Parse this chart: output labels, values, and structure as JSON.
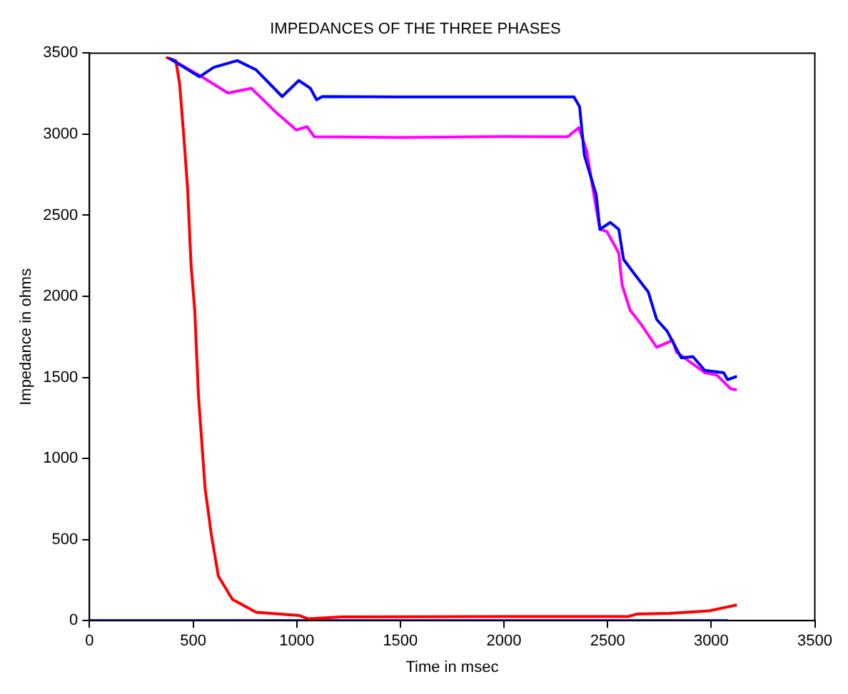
{
  "chart_data": {
    "type": "line",
    "title": "IMPEDANCES OF THE THREE PHASES",
    "xlabel": "Time in msec",
    "ylabel": "Impedance in ohms",
    "xlim": [
      0,
      3500
    ],
    "xticks": [
      0,
      500,
      1000,
      1500,
      2000,
      2500,
      3000,
      3500
    ],
    "ylim": [
      0,
      3500
    ],
    "yticks": [
      0,
      500,
      1000,
      1500,
      2000,
      2500,
      3000,
      3500
    ],
    "grid": false,
    "legend": false,
    "marker": "none",
    "line_style": "solid",
    "series": [
      {
        "color": "#0000ff",
        "x": [
          383,
          531,
          599,
          713,
          804,
          930,
          1010,
          1066,
          1096,
          1123,
          1500,
          2000,
          2338,
          2365,
          2388,
          2445,
          2463,
          2513,
          2554,
          2577,
          2627,
          2696,
          2737,
          2787,
          2856,
          2912,
          2969,
          3060,
          3079,
          3124
        ],
        "values": [
          3470,
          3354,
          3412,
          3454,
          3397,
          3232,
          3331,
          3283,
          3212,
          3232,
          3230,
          3230,
          3230,
          3169,
          2870,
          2627,
          2413,
          2456,
          2413,
          2228,
          2142,
          2028,
          1857,
          1786,
          1620,
          1628,
          1543,
          1529,
          1486,
          1506
        ]
      },
      {
        "color": "#ff00ff",
        "x": [
          383,
          463,
          542,
          668,
          781,
          896,
          998,
          1050,
          1085,
          1500,
          2000,
          2308,
          2361,
          2399,
          2434,
          2463,
          2497,
          2554,
          2570,
          2609,
          2661,
          2737,
          2814,
          2832,
          2969,
          3026,
          3095,
          3124
        ],
        "values": [
          3470,
          3412,
          3354,
          3254,
          3283,
          3140,
          3026,
          3046,
          2984,
          2980,
          2985,
          2984,
          3040,
          2898,
          2627,
          2413,
          2399,
          2268,
          2071,
          1914,
          1829,
          1686,
          1729,
          1657,
          1529,
          1515,
          1429,
          1423
        ]
      },
      {
        "color": "#ff0000",
        "x": [
          369,
          417,
          435,
          458,
          474,
          490,
          508,
          526,
          542,
          558,
          588,
          622,
          690,
          804,
          1010,
          1055,
          1215,
          2000,
          2600,
          2640,
          2800,
          2992,
          3124
        ],
        "values": [
          3474,
          3454,
          3311,
          2941,
          2655,
          2199,
          1914,
          1386,
          1101,
          816,
          531,
          274,
          131,
          51,
          32,
          11,
          23,
          25,
          25,
          40,
          45,
          60,
          97
        ]
      },
      {
        "color": "#0000cc",
        "x": [
          0,
          3080
        ],
        "values": [
          0,
          0
        ]
      }
    ]
  }
}
